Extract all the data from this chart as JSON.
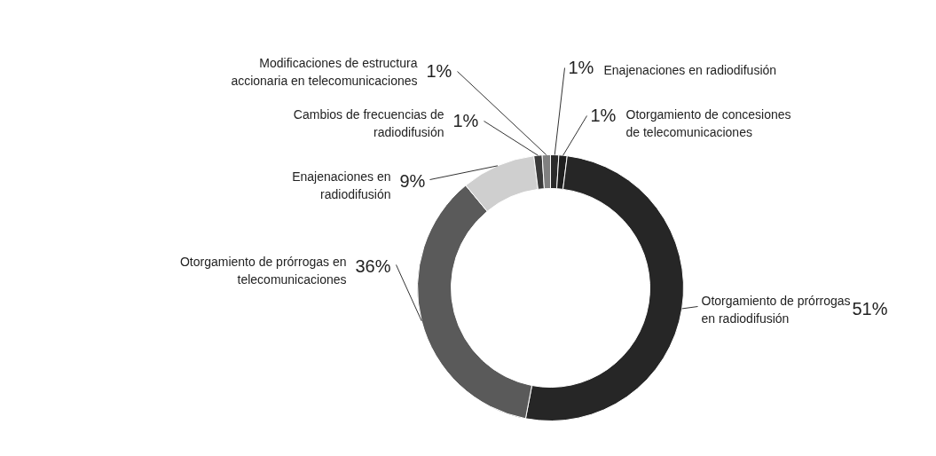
{
  "chart_data": {
    "type": "donut",
    "categories": [
      "Enajenaciones en radiodifusión",
      "Otorgamiento de concesiones de telecomunicaciones",
      "Otorgamiento de prórrogas en radiodifusión",
      "Otorgamiento de prórrogas en telecomunicaciones",
      "Enajenaciones en radiodifusión",
      "Cambios de frecuencias de radiodifusión",
      "Modificaciones de estructura accionaria en telecomunicaciones"
    ],
    "values": [
      1,
      1,
      51,
      36,
      9,
      1,
      1
    ],
    "value_labels": [
      "1%",
      "1%",
      "51%",
      "36%",
      "9%",
      "1%",
      "1%"
    ],
    "colors": [
      "#2b2b2b",
      "#1e1e1e",
      "#262626",
      "#5a5a5a",
      "#cfcfcf",
      "#3a3a3a",
      "#808080"
    ]
  }
}
